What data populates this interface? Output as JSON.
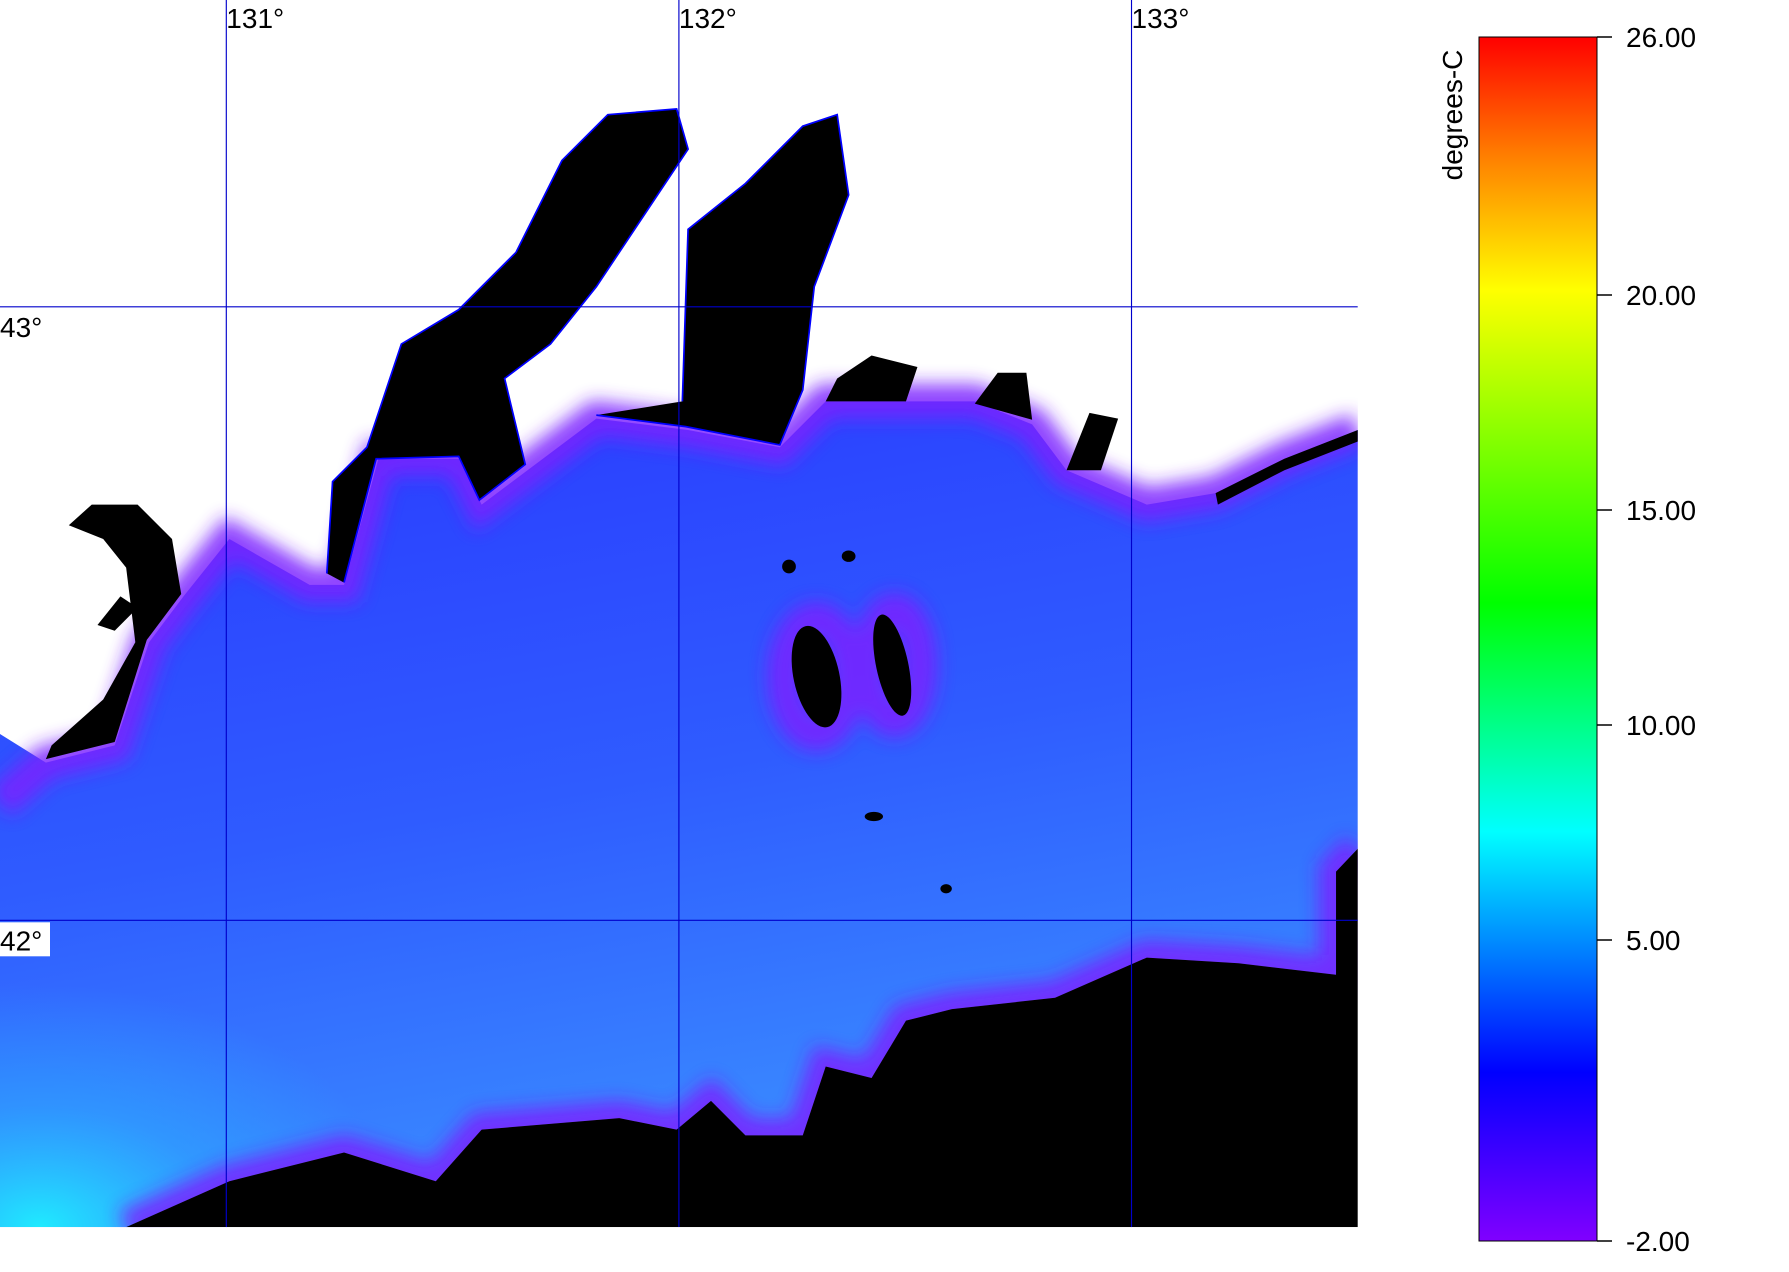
{
  "map": {
    "xlim": [
      130.5,
      133.5
    ],
    "ylim": [
      41.5,
      43.5
    ],
    "lon_ticks": [
      {
        "value": 131,
        "label": "131°"
      },
      {
        "value": 132,
        "label": "132°"
      },
      {
        "value": 133,
        "label": "133°"
      }
    ],
    "lat_ticks": [
      {
        "value": 43,
        "label": "43°"
      },
      {
        "value": 42,
        "label": "42°"
      }
    ],
    "grid_color": "#0000cc"
  },
  "colorbar": {
    "label": "degrees-C",
    "lim": [
      -2,
      26
    ],
    "ticks": [
      {
        "value": 26,
        "label": "26.00"
      },
      {
        "value": 20,
        "label": "20.00"
      },
      {
        "value": 15,
        "label": "15.00"
      },
      {
        "value": 10,
        "label": "10.00"
      },
      {
        "value": 5,
        "label": "5.00"
      },
      {
        "value": -2,
        "label": "-2.00"
      }
    ]
  }
}
